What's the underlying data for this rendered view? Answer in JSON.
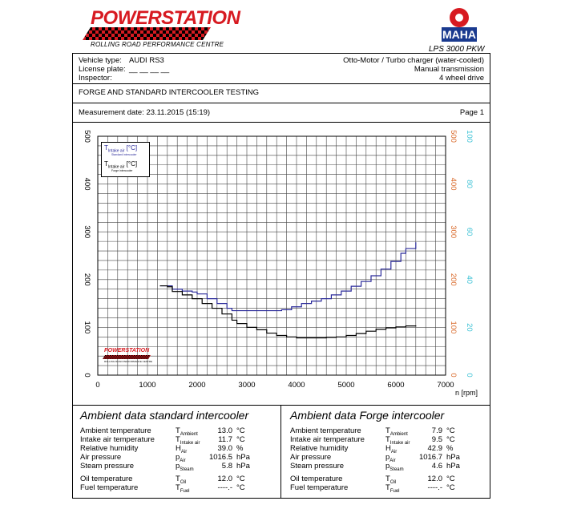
{
  "header": {
    "brand": "POWERSTATION",
    "brand_sub": "ROLLING ROAD PERFORMANCE CENTRE",
    "maha_brand": "MAHA",
    "maha_model": "LPS 3000 PKW",
    "colors": {
      "brand_red": "#d71a21",
      "maha_blue": "#1a3a8f"
    }
  },
  "vehicle": {
    "type_label": "Vehicle type:",
    "type_value": "AUDI RS3",
    "plate_label": "License plate:",
    "plate_value": "__ __ __ __",
    "inspector_label": "Inspector:",
    "engine": "Otto-Motor / Turbo charger (water-cooled)",
    "transmission": "Manual transmission",
    "drive": "4 wheel drive"
  },
  "test_title": "FORGE AND STANDARD INTERCOOLER TESTING",
  "measurement": {
    "date_label": "Measurement date: 23.11.2015 (15:19)",
    "page": "Page 1"
  },
  "chart_data": {
    "type": "line",
    "xlabel": "n [rpm]",
    "xlim": [
      0,
      7000
    ],
    "xticks": [
      "0",
      "1000",
      "2000",
      "3000",
      "4000",
      "5000",
      "6000",
      "7000"
    ],
    "ylim": [
      0,
      500
    ],
    "yticks_left": [
      "0",
      "100",
      "200",
      "300",
      "400",
      "500"
    ],
    "yticks_right_red": [
      "0",
      "100",
      "200",
      "300",
      "400",
      "500"
    ],
    "yticks_right_cyan": [
      "0",
      "20",
      "40",
      "60",
      "80",
      "100"
    ],
    "grid": true,
    "legend_placement": "top-left",
    "legend": [
      {
        "symbol": "T",
        "sub": "Intake air",
        "unit": "[°C]",
        "caption": "Standard intercooler",
        "color": "#2a2a9a"
      },
      {
        "symbol": "T",
        "sub": "Intake air",
        "unit": "[°C]",
        "caption": "Forge intercooler",
        "color": "#000000"
      }
    ],
    "series": [
      {
        "color": "#2a2a9a",
        "x": [
          1250,
          1400,
          1500,
          1700,
          1900,
          2000,
          2200,
          2400,
          2600,
          2700,
          3000,
          3300,
          3600,
          3700,
          3900,
          4100,
          4300,
          4500,
          4700,
          4900,
          5100,
          5300,
          5500,
          5700,
          5900,
          6100,
          6200,
          6400
        ],
        "y": [
          187,
          187,
          180,
          176,
          174,
          170,
          160,
          150,
          140,
          135,
          135,
          135,
          135,
          137,
          143,
          150,
          155,
          160,
          168,
          176,
          186,
          196,
          208,
          222,
          238,
          255,
          265,
          278
        ]
      },
      {
        "color": "#000000",
        "x": [
          1250,
          1400,
          1500,
          1700,
          1900,
          2100,
          2300,
          2500,
          2700,
          2800,
          3000,
          3200,
          3400,
          3600,
          3800,
          4000,
          4200,
          4400,
          4600,
          4800,
          5000,
          5200,
          5400,
          5600,
          5800,
          6000,
          6200,
          6400
        ],
        "y": [
          187,
          185,
          175,
          168,
          160,
          150,
          140,
          128,
          115,
          108,
          100,
          95,
          88,
          83,
          80,
          78,
          78,
          78,
          79,
          80,
          83,
          87,
          92,
          96,
          99,
          101,
          103,
          104
        ]
      }
    ]
  },
  "ambient_standard": {
    "title": "Ambient data standard intercooler",
    "rows": [
      {
        "label": "Ambient temperature",
        "sym": "T",
        "sub": "Ambient",
        "value": "13.0",
        "unit": "°C"
      },
      {
        "label": "Intake air temperature",
        "sym": "T",
        "sub": "Intake air",
        "value": "11.7",
        "unit": "°C"
      },
      {
        "label": "Relative humidity",
        "sym": "H",
        "sub": "Air",
        "value": "39.0",
        "unit": "%"
      },
      {
        "label": "Air pressure",
        "sym": "p",
        "sub": "Air",
        "value": "1016.5",
        "unit": "hPa"
      },
      {
        "label": "Steam pressure",
        "sym": "p",
        "sub": "Steam",
        "value": "5.8",
        "unit": "hPa"
      },
      {
        "label": "Oil temperature",
        "sym": "T",
        "sub": "Oil",
        "value": "12.0",
        "unit": "°C"
      },
      {
        "label": "Fuel temperature",
        "sym": "T",
        "sub": "Fuel",
        "value": "----.-",
        "unit": "°C"
      }
    ]
  },
  "ambient_forge": {
    "title": "Ambient data Forge intercooler",
    "rows": [
      {
        "label": "Ambient temperature",
        "sym": "T",
        "sub": "Ambient",
        "value": "7.9",
        "unit": "°C"
      },
      {
        "label": "Intake air temperature",
        "sym": "T",
        "sub": "Intake air",
        "value": "9.5",
        "unit": "°C"
      },
      {
        "label": "Relative humidity",
        "sym": "H",
        "sub": "Air",
        "value": "42.9",
        "unit": "%"
      },
      {
        "label": "Air pressure",
        "sym": "p",
        "sub": "Air",
        "value": "1016.7",
        "unit": "hPa"
      },
      {
        "label": "Steam pressure",
        "sym": "p",
        "sub": "Steam",
        "value": "4.6",
        "unit": "hPa"
      },
      {
        "label": "Oil temperature",
        "sym": "T",
        "sub": "Oil",
        "value": "12.0",
        "unit": "°C"
      },
      {
        "label": "Fuel temperature",
        "sym": "T",
        "sub": "Fuel",
        "value": "----.-",
        "unit": "°C"
      }
    ]
  }
}
